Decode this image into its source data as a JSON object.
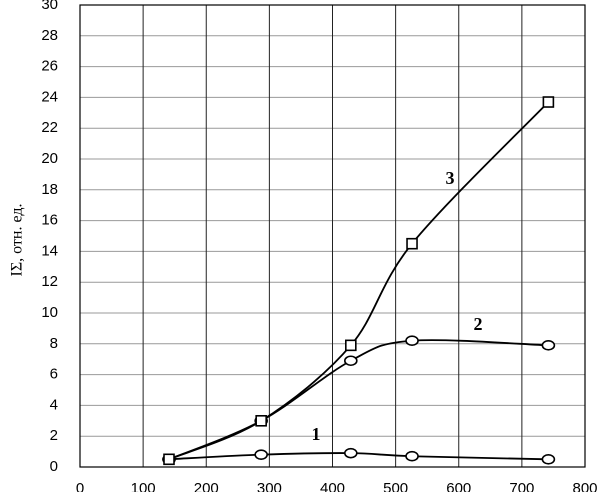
{
  "chart_data": {
    "type": "line",
    "ylabel": "IΣ, отн. ед.",
    "series": [
      {
        "name": "1",
        "marker": "circle",
        "color": "#000000",
        "x": [
          141,
          287,
          429,
          526,
          742
        ],
        "values": [
          0.5,
          0.8,
          0.9,
          0.7,
          0.5
        ]
      },
      {
        "name": "2",
        "marker": "circle",
        "color": "#000000",
        "x": [
          141,
          287,
          429,
          526,
          742
        ],
        "values": [
          0.5,
          3.0,
          6.9,
          8.2,
          7.9
        ]
      },
      {
        "name": "3",
        "marker": "square",
        "color": "#000000",
        "x": [
          141,
          287,
          429,
          526,
          742
        ],
        "values": [
          0.5,
          3.0,
          7.9,
          14.5,
          23.7
        ]
      }
    ],
    "xlim": [
      0,
      800
    ],
    "xticks": [
      0,
      100,
      200,
      300,
      400,
      500,
      600,
      700,
      800
    ],
    "ylim": [
      0,
      30
    ],
    "yticks": [
      0,
      2,
      4,
      6,
      8,
      10,
      12,
      14,
      16,
      18,
      20,
      22,
      24,
      26,
      28,
      30
    ],
    "grid": true
  }
}
